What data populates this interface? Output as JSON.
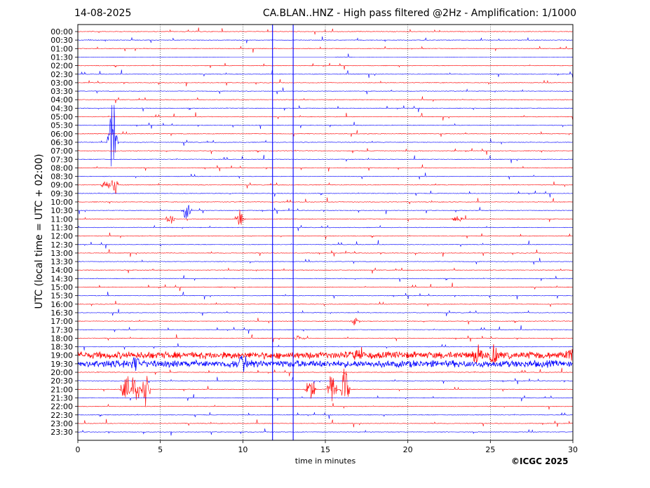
{
  "header": {
    "date": "14-08-2025",
    "title": "CA.BLAN..HNZ - High pass filtered @2Hz - Amplification: 1/1000"
  },
  "footer": {
    "copyright": "©ICGC 2025"
  },
  "chart_data": {
    "type": "line",
    "title": "CA.BLAN..HNZ - High pass filtered @2Hz - Amplification: 1/1000",
    "xlabel": "time in minutes",
    "ylabel": "UTC (local time = UTC + 02:00)",
    "xlim": [
      0,
      30
    ],
    "x_ticks": [
      0,
      5,
      10,
      15,
      20,
      25,
      30
    ],
    "x_tick_labels": [
      "0",
      "5",
      "10",
      "15",
      "20",
      "25",
      "30"
    ],
    "y_labels": [
      "00:00",
      "00:30",
      "01:00",
      "01:30",
      "02:00",
      "02:30",
      "03:00",
      "03:30",
      "04:00",
      "04:30",
      "05:00",
      "05:30",
      "06:00",
      "06:30",
      "07:00",
      "07:30",
      "08:00",
      "08:30",
      "09:00",
      "09:30",
      "10:00",
      "10:30",
      "11:00",
      "11:30",
      "12:00",
      "12:30",
      "13:00",
      "13:30",
      "14:00",
      "14:30",
      "15:00",
      "15:30",
      "16:00",
      "16:30",
      "17:00",
      "17:30",
      "18:00",
      "18:30",
      "19:00",
      "19:30",
      "20:00",
      "20:30",
      "21:00",
      "21:30",
      "22:00",
      "22:30",
      "23:00",
      "23:30"
    ],
    "grid": "vertical dotted at x ticks",
    "trace_colors": [
      "#ff0000",
      "#0000ff"
    ],
    "vertical_lines_minutes": [
      11.8,
      13.05
    ],
    "events": [
      {
        "row": 13,
        "minute": 2.1,
        "amplitude": 7.0,
        "color": "#0000ff"
      },
      {
        "row": 18,
        "minute": 1.7,
        "amplitude": 1.0,
        "color": "#0000ff"
      },
      {
        "row": 18,
        "minute": 2.2,
        "amplitude": 1.5,
        "color": "#0000ff"
      },
      {
        "row": 21,
        "minute": 6.6,
        "amplitude": 1.5,
        "color": "#0000ff"
      },
      {
        "row": 22,
        "minute": 5.6,
        "amplitude": 1.0,
        "color": "#ff0000"
      },
      {
        "row": 22,
        "minute": 9.8,
        "amplitude": 1.2,
        "color": "#ff0000"
      },
      {
        "row": 22,
        "minute": 23.0,
        "amplitude": 0.8,
        "color": "#ff0000"
      },
      {
        "row": 34,
        "minute": 16.8,
        "amplitude": 0.6,
        "color": "#ff0000"
      },
      {
        "row": 36,
        "minute": 13.4,
        "amplitude": 0.4,
        "color": "#ff0000"
      },
      {
        "row": 38,
        "minute": 17.0,
        "amplitude": 1.2,
        "color": "#ff0000"
      },
      {
        "row": 38,
        "minute": 24.2,
        "amplitude": 1.4,
        "color": "#ff0000"
      },
      {
        "row": 38,
        "minute": 25.2,
        "amplitude": 1.3,
        "color": "#ff0000"
      },
      {
        "row": 38,
        "minute": 29.8,
        "amplitude": 1.0,
        "color": "#ff0000"
      },
      {
        "row": 39,
        "minute": 10.0,
        "amplitude": 1.2,
        "color": "#0000ff"
      },
      {
        "row": 39,
        "minute": 3.5,
        "amplitude": 1.0,
        "color": "#0000ff"
      },
      {
        "row": 42,
        "minute": 2.9,
        "amplitude": 2.8,
        "color": "#ff0000"
      },
      {
        "row": 42,
        "minute": 3.5,
        "amplitude": 3.2,
        "color": "#ff0000"
      },
      {
        "row": 42,
        "minute": 4.1,
        "amplitude": 2.5,
        "color": "#ff0000"
      },
      {
        "row": 42,
        "minute": 14.1,
        "amplitude": 2.2,
        "color": "#ff0000"
      },
      {
        "row": 42,
        "minute": 15.4,
        "amplitude": 3.0,
        "color": "#ff0000"
      },
      {
        "row": 42,
        "minute": 16.2,
        "amplitude": 3.4,
        "color": "#ff0000"
      }
    ],
    "noisy_rows": [
      38,
      39
    ],
    "flat_segments": [
      {
        "row": 3,
        "from_minute": 0,
        "to_minute": 9.2,
        "color": "#0000ff"
      },
      {
        "row": 3,
        "from_minute": 17.0,
        "to_minute": 30,
        "color": "#0000ff"
      }
    ]
  }
}
